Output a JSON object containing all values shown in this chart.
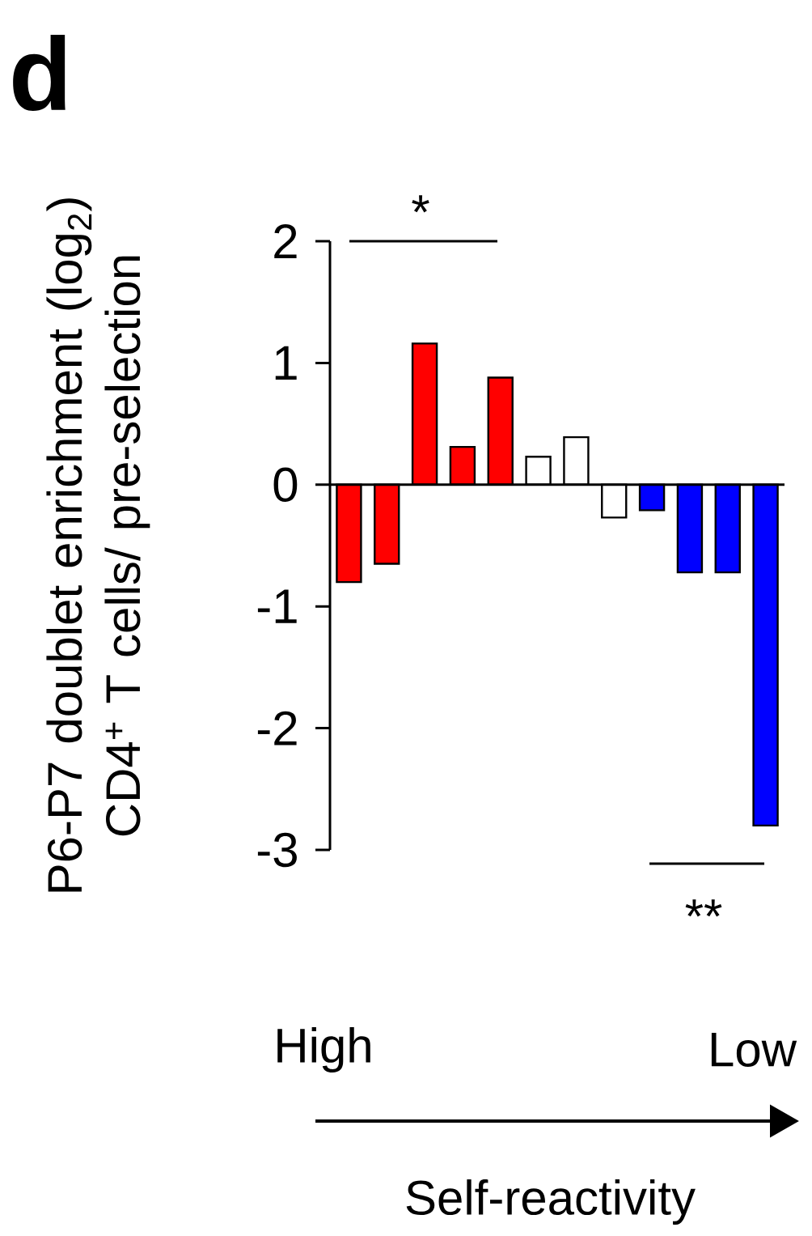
{
  "chart_data": {
    "type": "bar",
    "ylabel": "P6-P7 doublet enrichment (log$_{2}$) CD4$^{+}$ T cells/ pre-selection",
    "categories": [
      null,
      null,
      null,
      null,
      null,
      null,
      null,
      null,
      null,
      null,
      null,
      null
    ],
    "values": [
      -0.8,
      -0.65,
      1.16,
      0.31,
      0.88,
      0.23,
      0.39,
      -0.27,
      -0.21,
      -0.72,
      -0.72,
      -2.8
    ],
    "colors": [
      "#ff0000",
      "#ff0000",
      "#ff0000",
      "#ff0000",
      "#ff0000",
      "#ffffff",
      "#ffffff",
      "#ffffff",
      "#0000ff",
      "#0000ff",
      "#0000ff",
      "#0000ff"
    ],
    "ylim": [
      -3,
      2
    ],
    "yticks": [
      -3,
      -2,
      -1,
      0,
      1,
      2
    ],
    "annotations": [
      "d",
      "*",
      "**",
      "High",
      "Low",
      "Self-reactivity"
    ],
    "ref_lines": [
      {
        "axis": "y",
        "value": 0
      }
    ],
    "grid": false
  }
}
